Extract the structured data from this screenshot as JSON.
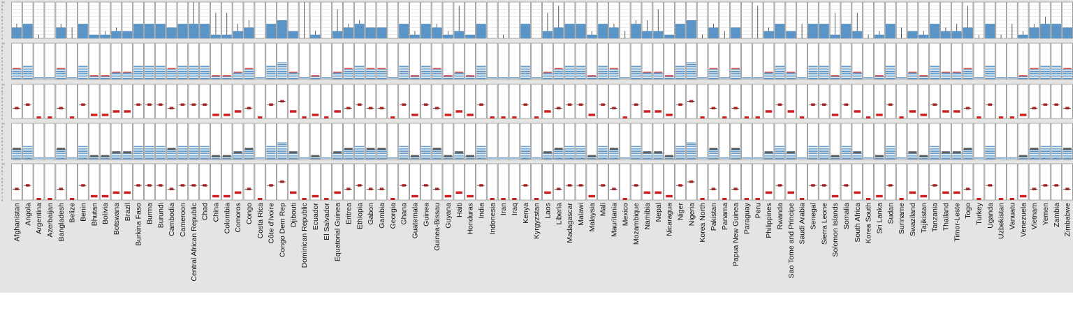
{
  "chart_data": {
    "type": "bar",
    "title": "",
    "xlabel": "",
    "ylabel": "",
    "ylim": [
      0,
      10
    ],
    "y_ticks": [
      "0",
      "1",
      "2",
      "3",
      "4",
      "5",
      "6",
      "7",
      "8",
      "9",
      "10"
    ],
    "grid": true,
    "legend": "none",
    "colors": {
      "blue": "#5b95c8",
      "red": "#cc2222",
      "dark": "#333333",
      "frame": "#888888"
    },
    "categories": [
      "Afghanistan",
      "Angola",
      "Argentina",
      "Azerbaijan",
      "Bangladesh",
      "Belize",
      "Benin",
      "Bhutan",
      "Bolivia",
      "Botswana",
      "Brazil",
      "Burkina Faso",
      "Burma",
      "Burundi",
      "Cambodia",
      "Cameroon",
      "Central African Republic",
      "Chad",
      "China",
      "Colombia",
      "Comoros",
      "Congo",
      "Costa Rica",
      "Côte d'Ivoire",
      "Congo Dem Rep",
      "Djibouti",
      "Dominican Republic",
      "Ecuador",
      "El Salvador",
      "Equatorial Guinea",
      "Eritrea",
      "Ethiopia",
      "Gabon",
      "Gambia",
      "Georgia",
      "Ghana",
      "Guatemala",
      "Guinea",
      "Guinea-Bissau",
      "Guyana",
      "Haiti",
      "Honduras",
      "India",
      "Indonesia",
      "Iran",
      "Iraq",
      "Kenya",
      "Kyrgyzstan",
      "Laos",
      "Liberia",
      "Madagascar",
      "Malawi",
      "Malaysia",
      "Mali",
      "Mauritania",
      "Mexico",
      "Mozambique",
      "Namibia",
      "Nepal",
      "Nicaragua",
      "Niger",
      "Nigeria",
      "Korea North",
      "Pakistan",
      "Panama",
      "Papua New Guinea",
      "Paraguay",
      "Peru",
      "Philippines",
      "Rwanda",
      "Sao Tome and Principe",
      "Saudi Arabia",
      "Senegal",
      "Sierra Leone",
      "Solomon Islands",
      "Somalia",
      "South Africa",
      "Korea South",
      "Sri Lanka",
      "Sudan",
      "Suriname",
      "Swaziland",
      "Tajikistan",
      "Tanzania",
      "Thailand",
      "Timor-Leste",
      "Togo",
      "Turkey",
      "Uganda",
      "Uzbekistan",
      "Vanuatu",
      "Venezuela",
      "Vietnam",
      "Yemen",
      "Zambia",
      "Zimbabwe"
    ],
    "values": [
      3,
      4,
      0,
      0,
      3,
      0,
      4,
      1,
      1,
      2,
      2,
      4,
      4,
      4,
      3,
      4,
      4,
      4,
      1,
      1,
      2,
      3,
      0,
      4,
      5,
      2,
      0,
      1,
      0,
      2,
      3,
      4,
      3,
      3,
      0,
      4,
      1,
      4,
      3,
      1,
      2,
      1,
      4,
      0,
      0,
      0,
      4,
      0,
      2,
      3,
      4,
      4,
      1,
      4,
      3,
      0,
      4,
      2,
      2,
      1,
      4,
      5,
      0,
      3,
      0,
      3,
      0,
      0,
      2,
      4,
      2,
      0,
      4,
      4,
      1,
      4,
      2,
      0,
      1,
      4,
      0,
      2,
      1,
      4,
      2,
      2,
      3,
      0,
      4,
      0,
      0,
      1,
      3,
      4,
      4,
      3
    ],
    "error_max": [
      4,
      4,
      1,
      0,
      4,
      3,
      4,
      1,
      2,
      3,
      2,
      4,
      4,
      4,
      3,
      4,
      10,
      4,
      7,
      7,
      4,
      5,
      0,
      4,
      5,
      2,
      10,
      2,
      0,
      8,
      4,
      5,
      3,
      3,
      0,
      4,
      2,
      4,
      4,
      2,
      9,
      1,
      4,
      0,
      1,
      0,
      4,
      0,
      7,
      9,
      4,
      4,
      2,
      4,
      4,
      2,
      5,
      5,
      8,
      1,
      4,
      5,
      1,
      4,
      2,
      3,
      0,
      9,
      3,
      4,
      2,
      4,
      4,
      4,
      7,
      4,
      7,
      1,
      2,
      4,
      3,
      2,
      2,
      4,
      3,
      4,
      9,
      1,
      4,
      1,
      4,
      2,
      4,
      6,
      4,
      3
    ]
  }
}
